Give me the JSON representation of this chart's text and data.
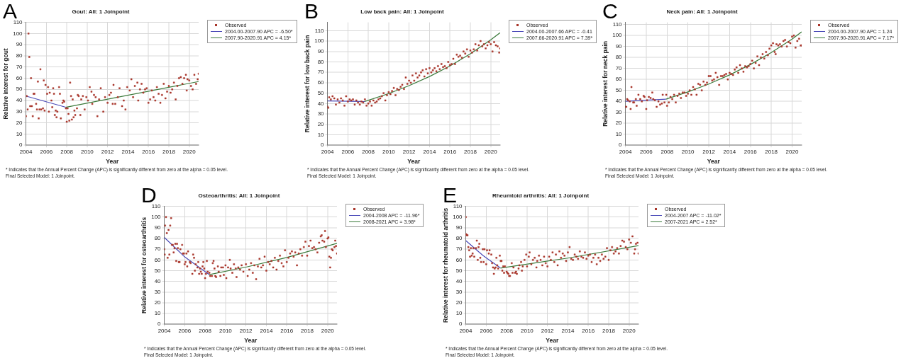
{
  "chart_data": [
    {
      "type": "scatter",
      "title": "Gout: All: 1 Joinpoint",
      "xlabel": "Year",
      "ylabel": "Relative interest for gout",
      "xlim": [
        2004,
        2020.92
      ],
      "xticks": [
        2004,
        2006,
        2008,
        2010,
        2012,
        2014,
        2016,
        2018,
        2020
      ],
      "ylim": [
        0,
        110
      ],
      "yticks": [
        0,
        10,
        20,
        30,
        40,
        50,
        60,
        70,
        80,
        90,
        100,
        110
      ],
      "grid": true,
      "legend": "top right",
      "annotations": [
        "A",
        "* Indicates that the Annual Percent Change (APC) is significantly different from zero at the alpha = 0.05 level.",
        "Final Selected Model: 1 Joinpoint."
      ],
      "series": [
        {
          "name": "Observed",
          "marker": "square",
          "color": "#a8352a",
          "x": [
            2004.0,
            2004.08,
            2004.17,
            2004.25,
            2004.33,
            2004.42,
            2004.5,
            2004.58,
            2004.67,
            2004.75,
            2004.83,
            2005.0,
            2005.08,
            2005.17,
            2005.25,
            2005.33,
            2005.42,
            2005.5,
            2005.67,
            2005.75,
            2005.83,
            2005.92,
            2006.08,
            2006.17,
            2006.25,
            2006.33,
            2006.5,
            2006.58,
            2006.67,
            2006.75,
            2006.83,
            2006.92,
            2007.0,
            2007.08,
            2007.25,
            2007.33,
            2007.42,
            2007.58,
            2007.67,
            2007.75,
            2007.92,
            2008.0,
            2008.08,
            2008.17,
            2008.25,
            2008.33,
            2008.42,
            2008.5,
            2008.58,
            2008.67,
            2008.75,
            2008.83,
            2009.0,
            2009.08,
            2009.17,
            2009.33,
            2009.42,
            2009.58,
            2009.75,
            2009.92,
            2010.08,
            2010.25,
            2010.42,
            2010.5,
            2010.67,
            2010.83,
            2011.0,
            2011.17,
            2011.33,
            2011.58,
            2011.75,
            2012.0,
            2012.17,
            2012.33,
            2012.5,
            2012.58,
            2012.75,
            2013.0,
            2013.17,
            2013.42,
            2013.58,
            2013.75,
            2013.92,
            2014.17,
            2014.33,
            2014.5,
            2014.67,
            2014.92,
            2015.0,
            2015.17,
            2015.33,
            2015.5,
            2015.67,
            2015.83,
            2016.0,
            2016.17,
            2016.33,
            2016.5,
            2016.67,
            2016.83,
            2017.0,
            2017.17,
            2017.33,
            2017.5,
            2017.67,
            2017.83,
            2018.0,
            2018.17,
            2018.33,
            2018.5,
            2018.67,
            2018.83,
            2019.0,
            2019.17,
            2019.33,
            2019.5,
            2019.67,
            2019.75,
            2019.83,
            2020.0,
            2020.17,
            2020.33,
            2020.5,
            2020.67,
            2020.83,
            2020.92
          ],
          "values": [
            26,
            44,
            32,
            100,
            79,
            35,
            60,
            35,
            26,
            46,
            46,
            37,
            32,
            57,
            24,
            32,
            68,
            32,
            33,
            58,
            31,
            54,
            46,
            52,
            30,
            47,
            40,
            34,
            51,
            46,
            27,
            31,
            25,
            30,
            52,
            46,
            24,
            38,
            40,
            39,
            33,
            21,
            33,
            28,
            22,
            56,
            44,
            23,
            41,
            25,
            31,
            27,
            33,
            45,
            44,
            27,
            41,
            44,
            32,
            43,
            40,
            52,
            48,
            37,
            45,
            43,
            26,
            41,
            51,
            30,
            43,
            38,
            45,
            47,
            37,
            54,
            37,
            43,
            51,
            35,
            40,
            32,
            52,
            49,
            59,
            43,
            53,
            56,
            40,
            50,
            55,
            47,
            50,
            51,
            38,
            41,
            49,
            43,
            40,
            52,
            46,
            38,
            45,
            55,
            42,
            48,
            53,
            47,
            50,
            56,
            41,
            53,
            60,
            61,
            55,
            60,
            63,
            49,
            59,
            58,
            53,
            50,
            63,
            55,
            59,
            64
          ]
        },
        {
          "name": "2004.00-2007.90 APC = -6.50*",
          "type": "line",
          "color": "#4b4bb8",
          "x": [
            2004,
            2007.9
          ],
          "values": [
            44,
            34
          ]
        },
        {
          "name": "2007.90-2020.91 APC = 4.15*",
          "type": "line",
          "color": "#3b7a3b",
          "x": [
            2007.9,
            2020.91
          ],
          "values": [
            34,
            57
          ]
        }
      ]
    },
    {
      "type": "scatter",
      "title": "Low back pain: All: 1 Joinpoint",
      "xlabel": "Year",
      "ylabel": "Relative interest for low back pain",
      "xlim": [
        2004,
        2020.92
      ],
      "xticks": [
        2004,
        2006,
        2008,
        2010,
        2012,
        2014,
        2016,
        2018,
        2020
      ],
      "ylim": [
        0,
        118
      ],
      "yticks": [
        0,
        10,
        20,
        30,
        40,
        50,
        60,
        70,
        80,
        90,
        100,
        110
      ],
      "grid": true,
      "legend": "top right",
      "annotations": [
        "B",
        "* Indicates that the Annual Percent Change (APC) is significantly different from zero at the alpha = 0.05 level.",
        "Final Selected Model: 1 Joinpoint."
      ],
      "series": [
        {
          "name": "Observed",
          "marker": "square",
          "color": "#a8352a",
          "x": [
            2004.0,
            2004.08,
            2004.17,
            2004.33,
            2004.5,
            2004.67,
            2004.83,
            2005.0,
            2005.17,
            2005.33,
            2005.5,
            2005.67,
            2005.83,
            2006.0,
            2006.17,
            2006.33,
            2006.5,
            2006.67,
            2006.83,
            2007.0,
            2007.17,
            2007.33,
            2007.5,
            2007.67,
            2007.83,
            2008.0,
            2008.17,
            2008.33,
            2008.5,
            2008.67,
            2008.83,
            2009.0,
            2009.17,
            2009.33,
            2009.5,
            2009.67,
            2009.83,
            2010.0,
            2010.17,
            2010.33,
            2010.5,
            2010.67,
            2010.83,
            2011.0,
            2011.17,
            2011.33,
            2011.5,
            2011.67,
            2011.83,
            2012.0,
            2012.17,
            2012.33,
            2012.5,
            2012.67,
            2012.83,
            2013.0,
            2013.17,
            2013.33,
            2013.5,
            2013.67,
            2013.83,
            2014.0,
            2014.17,
            2014.33,
            2014.5,
            2014.67,
            2014.83,
            2015.0,
            2015.17,
            2015.33,
            2015.5,
            2015.67,
            2015.83,
            2016.0,
            2016.17,
            2016.33,
            2016.5,
            2016.67,
            2016.83,
            2017.0,
            2017.17,
            2017.33,
            2017.5,
            2017.67,
            2017.83,
            2018.0,
            2018.17,
            2018.33,
            2018.5,
            2018.67,
            2018.83,
            2019.0,
            2019.17,
            2019.33,
            2019.5,
            2019.67,
            2019.83,
            2020.0,
            2020.17,
            2020.33,
            2020.5,
            2020.67,
            2020.83,
            2020.92
          ],
          "values": [
            37,
            36,
            46,
            44,
            47,
            45,
            39,
            44,
            41,
            45,
            43,
            38,
            47,
            42,
            44,
            43,
            44,
            39,
            43,
            41,
            39,
            42,
            41,
            44,
            38,
            40,
            42,
            38,
            43,
            41,
            42,
            44,
            45,
            47,
            50,
            43,
            48,
            51,
            49,
            52,
            55,
            48,
            54,
            53,
            56,
            58,
            54,
            65,
            59,
            62,
            60,
            67,
            62,
            69,
            65,
            67,
            70,
            72,
            66,
            73,
            69,
            74,
            70,
            72,
            74,
            71,
            76,
            73,
            78,
            75,
            76,
            74,
            80,
            77,
            78,
            83,
            78,
            87,
            85,
            86,
            84,
            90,
            88,
            92,
            85,
            91,
            89,
            92,
            97,
            91,
            96,
            100,
            95,
            97,
            93,
            96,
            99,
            97,
            90,
            99,
            96,
            95,
            89,
            93
          ]
        },
        {
          "name": "2004.00-2007.66 APC = -0.41",
          "type": "line",
          "color": "#4b4bb8",
          "x": [
            2004,
            2007.66
          ],
          "values": [
            42.5,
            42
          ]
        },
        {
          "name": "2007.66-2020.91 APC = 7.39*",
          "type": "line",
          "color": "#3b7a3b",
          "x": [
            2007.66,
            2010,
            2012,
            2014,
            2016,
            2018,
            2020,
            2020.91
          ],
          "values": [
            42,
            49.6,
            57.2,
            66,
            76.1,
            87.8,
            101.2,
            108
          ]
        }
      ]
    },
    {
      "type": "scatter",
      "title": "Neck pain: All: 1 Joinpoint",
      "xlabel": "Year",
      "ylabel": "Relative interest for neck pain",
      "xlim": [
        2004,
        2020.92
      ],
      "xticks": [
        2004,
        2006,
        2008,
        2010,
        2012,
        2014,
        2016,
        2018,
        2020
      ],
      "ylim": [
        0,
        112
      ],
      "yticks": [
        0,
        10,
        20,
        30,
        40,
        50,
        60,
        70,
        80,
        90,
        100,
        110
      ],
      "grid": true,
      "legend": "top right",
      "annotations": [
        "C",
        "* Indicates that the Annual Percent Change (APC) is significantly different from zero at the alpha = 0.05 level.",
        "Final Selected Model: 1 Joinpoint."
      ],
      "series": [
        {
          "name": "Observed",
          "marker": "square",
          "color": "#a8352a",
          "x": [
            2004.0,
            2004.08,
            2004.17,
            2004.25,
            2004.42,
            2004.5,
            2004.58,
            2004.75,
            2004.83,
            2005.0,
            2005.08,
            2005.25,
            2005.42,
            2005.58,
            2005.75,
            2005.83,
            2006.0,
            2006.08,
            2006.25,
            2006.42,
            2006.58,
            2006.67,
            2006.83,
            2007.0,
            2007.17,
            2007.33,
            2007.5,
            2007.58,
            2007.75,
            2007.92,
            2008.0,
            2008.17,
            2008.33,
            2008.5,
            2008.67,
            2008.83,
            2009.0,
            2009.17,
            2009.33,
            2009.5,
            2009.67,
            2009.83,
            2010.0,
            2010.17,
            2010.33,
            2010.5,
            2010.67,
            2010.83,
            2011.0,
            2011.17,
            2011.33,
            2011.5,
            2011.67,
            2011.83,
            2012.0,
            2012.17,
            2012.33,
            2012.5,
            2012.67,
            2012.83,
            2013.0,
            2013.17,
            2013.33,
            2013.5,
            2013.67,
            2013.83,
            2014.0,
            2014.17,
            2014.33,
            2014.5,
            2014.67,
            2014.83,
            2015.0,
            2015.17,
            2015.33,
            2015.5,
            2015.67,
            2015.83,
            2016.0,
            2016.17,
            2016.33,
            2016.5,
            2016.67,
            2016.83,
            2017.0,
            2017.17,
            2017.33,
            2017.5,
            2017.67,
            2017.83,
            2018.0,
            2018.17,
            2018.33,
            2018.42,
            2018.5,
            2018.67,
            2018.83,
            2019.0,
            2019.17,
            2019.33,
            2019.5,
            2019.67,
            2019.83,
            2020.0,
            2020.17,
            2020.33,
            2020.5,
            2020.67,
            2020.83,
            2020.92
          ],
          "values": [
            35,
            35,
            42,
            41,
            40,
            33,
            53,
            39,
            39,
            42,
            36,
            46,
            42,
            40,
            45,
            44,
            33,
            41,
            44,
            43,
            48,
            42,
            41,
            35,
            40,
            37,
            38,
            46,
            39,
            46,
            36,
            39,
            44,
            42,
            46,
            39,
            45,
            47,
            43,
            48,
            48,
            45,
            47,
            50,
            46,
            53,
            51,
            46,
            56,
            55,
            50,
            58,
            55,
            57,
            63,
            63,
            59,
            60,
            66,
            62,
            55,
            63,
            63,
            64,
            65,
            60,
            66,
            65,
            64,
            69,
            71,
            66,
            73,
            70,
            67,
            72,
            71,
            72,
            74,
            77,
            70,
            75,
            81,
            73,
            80,
            83,
            79,
            85,
            82,
            88,
            91,
            93,
            85,
            83,
            92,
            91,
            92,
            90,
            95,
            96,
            90,
            94,
            93,
            99,
            100,
            89,
            95,
            97,
            91,
            91
          ]
        },
        {
          "name": "2004.00-2007.90 APC = 1.24",
          "type": "line",
          "color": "#4b4bb8",
          "x": [
            2004,
            2007.9
          ],
          "values": [
            40,
            42
          ]
        },
        {
          "name": "2007.90-2020.91 APC = 7.17*",
          "type": "line",
          "color": "#3b7a3b",
          "x": [
            2007.9,
            2010,
            2012,
            2014,
            2016,
            2018,
            2020,
            2020.91
          ],
          "values": [
            42,
            48.6,
            55.8,
            64.1,
            73.6,
            84.5,
            96.8,
            103.3
          ]
        }
      ]
    },
    {
      "type": "scatter",
      "title": "Osteoarthritis: All: 1 Joinpoint",
      "xlabel": "Year",
      "ylabel": "Relative interest for osteoarthritis",
      "xlim": [
        2004,
        2020.92
      ],
      "xticks": [
        2004,
        2006,
        2008,
        2010,
        2012,
        2014,
        2016,
        2018,
        2020
      ],
      "ylim": [
        0,
        110
      ],
      "yticks": [
        0,
        10,
        20,
        30,
        40,
        50,
        60,
        70,
        80,
        90,
        100,
        110
      ],
      "grid": true,
      "legend": "top right",
      "annotations": [
        "D",
        "* Indicates that the Annual Percent Change (APC) is significantly different from zero at the alpha = 0.05 level.",
        "Final Selected Model: 1 Joinpoint."
      ],
      "series": [
        {
          "name": "Observed",
          "marker": "square",
          "color": "#a8352a",
          "x": [
            2004.0,
            2004.04,
            2004.08,
            2004.17,
            2004.25,
            2004.33,
            2004.42,
            2004.5,
            2004.58,
            2004.67,
            2004.75,
            2004.83,
            2004.92,
            2005.0,
            2005.08,
            2005.17,
            2005.25,
            2005.33,
            2005.42,
            2005.5,
            2005.58,
            2005.75,
            2005.83,
            2005.92,
            2006.0,
            2006.08,
            2006.17,
            2006.25,
            2006.33,
            2006.5,
            2006.58,
            2006.75,
            2006.83,
            2006.92,
            2007.0,
            2007.08,
            2007.25,
            2007.33,
            2007.42,
            2007.5,
            2007.58,
            2007.67,
            2007.75,
            2007.83,
            2007.92,
            2008.0,
            2008.08,
            2008.17,
            2008.25,
            2008.42,
            2008.5,
            2008.67,
            2008.75,
            2008.83,
            2008.92,
            2009.0,
            2009.08,
            2009.25,
            2009.33,
            2009.5,
            2009.58,
            2009.75,
            2009.83,
            2010.0,
            2010.08,
            2010.25,
            2010.42,
            2010.5,
            2010.67,
            2010.83,
            2011.0,
            2011.08,
            2011.25,
            2011.42,
            2011.58,
            2011.75,
            2012.0,
            2012.17,
            2012.33,
            2012.5,
            2012.67,
            2012.83,
            2013.0,
            2013.17,
            2013.33,
            2013.5,
            2013.67,
            2013.83,
            2014.0,
            2014.17,
            2014.33,
            2014.5,
            2014.67,
            2014.83,
            2015.0,
            2015.17,
            2015.33,
            2015.5,
            2015.67,
            2015.83,
            2016.0,
            2016.17,
            2016.33,
            2016.5,
            2016.67,
            2016.83,
            2017.0,
            2017.17,
            2017.33,
            2017.5,
            2017.67,
            2017.83,
            2018.0,
            2018.17,
            2018.33,
            2018.5,
            2018.67,
            2018.83,
            2019.0,
            2019.17,
            2019.33,
            2019.42,
            2019.5,
            2019.67,
            2019.75,
            2019.83,
            2020.0,
            2020.08,
            2020.17,
            2020.25,
            2020.33,
            2020.42,
            2020.5,
            2020.67,
            2020.75,
            2020.83,
            2020.92
          ],
          "values": [
            70,
            65,
            92,
            100,
            85,
            62,
            88,
            65,
            92,
            99,
            74,
            74,
            67,
            71,
            75,
            59,
            75,
            71,
            58,
            58,
            70,
            74,
            66,
            66,
            56,
            58,
            66,
            54,
            68,
            58,
            57,
            47,
            65,
            62,
            50,
            56,
            53,
            58,
            47,
            52,
            49,
            47,
            54,
            58,
            52,
            43,
            47,
            59,
            49,
            48,
            45,
            45,
            57,
            59,
            52,
            45,
            44,
            54,
            49,
            45,
            53,
            53,
            46,
            55,
            43,
            53,
            60,
            52,
            48,
            56,
            52,
            44,
            53,
            51,
            55,
            49,
            56,
            45,
            51,
            57,
            48,
            55,
            42,
            54,
            61,
            53,
            55,
            63,
            50,
            58,
            56,
            59,
            53,
            62,
            51,
            59,
            64,
            57,
            54,
            69,
            58,
            62,
            66,
            68,
            63,
            67,
            55,
            66,
            70,
            64,
            72,
            77,
            64,
            73,
            78,
            71,
            72,
            70,
            67,
            76,
            82,
            83,
            78,
            77,
            87,
            72,
            80,
            81,
            63,
            53,
            62,
            70,
            69,
            72,
            78,
            73,
            66
          ]
        },
        {
          "name": "2004-2008 APC = -11.96*",
          "type": "line",
          "color": "#4b4bb8",
          "x": [
            2004,
            2006,
            2008.4
          ],
          "values": [
            81,
            62.8,
            46.3
          ]
        },
        {
          "name": "2008-2021 APC = 3.98*",
          "type": "line",
          "color": "#3b7a3b",
          "x": [
            2008.4,
            2012,
            2016,
            2020.92
          ],
          "values": [
            46.3,
            53.3,
            62.3,
            75.5
          ]
        }
      ]
    },
    {
      "type": "scatter",
      "title": "Rheumtoid arthritis: All: 1 Joinpoint",
      "xlabel": "Year",
      "ylabel": "Relative interest for rheumatoid arthritis",
      "xlim": [
        2004,
        2020.92
      ],
      "xticks": [
        2004,
        2006,
        2008,
        2010,
        2012,
        2014,
        2016,
        2018,
        2020
      ],
      "ylim": [
        0,
        110
      ],
      "yticks": [
        0,
        10,
        20,
        30,
        40,
        50,
        60,
        70,
        80,
        90,
        100,
        110
      ],
      "grid": true,
      "legend": "top right",
      "annotations": [
        "E",
        "* Indicates that the Annual Percent Change (APC) is significantly different from zero at the alpha = 0.05 level.",
        "Final Selected Model: 1 Joinpoint."
      ],
      "series": [
        {
          "name": "Observed",
          "marker": "square",
          "color": "#a8352a",
          "x": [
            2004.0,
            2004.04,
            2004.08,
            2004.17,
            2004.25,
            2004.33,
            2004.42,
            2004.5,
            2004.58,
            2004.67,
            2004.75,
            2004.83,
            2005.0,
            2005.08,
            2005.17,
            2005.25,
            2005.33,
            2005.42,
            2005.5,
            2005.67,
            2005.75,
            2005.83,
            2006.0,
            2006.08,
            2006.25,
            2006.33,
            2006.5,
            2006.58,
            2006.67,
            2006.75,
            2006.83,
            2006.92,
            2007.0,
            2007.08,
            2007.17,
            2007.33,
            2007.42,
            2007.5,
            2007.58,
            2007.67,
            2007.75,
            2007.83,
            2008.0,
            2008.08,
            2008.17,
            2008.25,
            2008.33,
            2008.5,
            2008.58,
            2008.67,
            2008.83,
            2008.92,
            2009.0,
            2009.17,
            2009.25,
            2009.42,
            2009.5,
            2009.58,
            2009.75,
            2009.92,
            2010.0,
            2010.17,
            2010.25,
            2010.42,
            2010.58,
            2010.75,
            2010.92,
            2011.0,
            2011.17,
            2011.33,
            2011.5,
            2011.67,
            2011.83,
            2012.0,
            2012.17,
            2012.33,
            2012.5,
            2012.67,
            2012.83,
            2013.0,
            2013.17,
            2013.33,
            2013.5,
            2013.67,
            2013.83,
            2014.0,
            2014.17,
            2014.33,
            2014.5,
            2014.67,
            2014.83,
            2015.0,
            2015.17,
            2015.33,
            2015.5,
            2015.67,
            2015.83,
            2016.0,
            2016.17,
            2016.33,
            2016.5,
            2016.67,
            2016.83,
            2017.0,
            2017.17,
            2017.33,
            2017.5,
            2017.67,
            2017.83,
            2018.0,
            2018.17,
            2018.33,
            2018.5,
            2018.67,
            2018.83,
            2019.0,
            2019.17,
            2019.33,
            2019.5,
            2019.67,
            2019.83,
            2020.0,
            2020.17,
            2020.33,
            2020.5,
            2020.58,
            2020.67,
            2020.83,
            2020.92
          ],
          "values": [
            100,
            84,
            83,
            83,
            72,
            69,
            63,
            71,
            64,
            66,
            71,
            63,
            71,
            78,
            60,
            72,
            75,
            62,
            58,
            70,
            58,
            70,
            56,
            69,
            66,
            69,
            65,
            57,
            53,
            47,
            52,
            53,
            62,
            55,
            52,
            64,
            59,
            59,
            50,
            54,
            48,
            54,
            49,
            48,
            47,
            45,
            45,
            57,
            48,
            53,
            48,
            49,
            47,
            52,
            55,
            58,
            50,
            54,
            60,
            65,
            54,
            63,
            67,
            56,
            60,
            62,
            53,
            59,
            64,
            60,
            55,
            63,
            57,
            54,
            63,
            60,
            67,
            58,
            65,
            55,
            68,
            62,
            66,
            64,
            59,
            67,
            72,
            61,
            60,
            65,
            63,
            61,
            68,
            63,
            62,
            67,
            61,
            64,
            65,
            58,
            62,
            65,
            56,
            62,
            59,
            65,
            61,
            63,
            71,
            60,
            69,
            72,
            66,
            68,
            71,
            66,
            73,
            78,
            77,
            72,
            70,
            79,
            76,
            82,
            66,
            70,
            75,
            76,
            66
          ]
        },
        {
          "name": "2004-2007 APC = -11.02*",
          "type": "line",
          "color": "#4b4bb8",
          "x": [
            2004,
            2005.7,
            2007.4
          ],
          "values": [
            78,
            64,
            52.4
          ]
        },
        {
          "name": "2007-2021 APC = 2.52*",
          "type": "line",
          "color": "#3b7a3b",
          "x": [
            2007.4,
            2014,
            2020.92
          ],
          "values": [
            52.4,
            61.7,
            73.3
          ]
        }
      ]
    }
  ]
}
